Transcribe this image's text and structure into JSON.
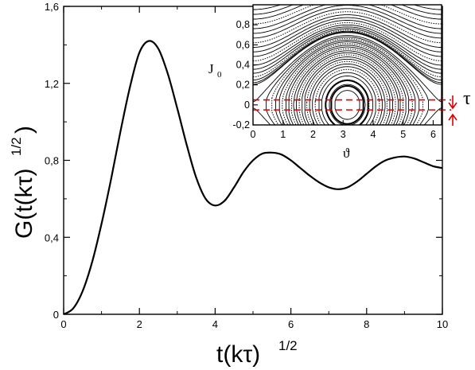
{
  "chart_data": [
    {
      "type": "line",
      "xlabel": {
        "base": "t(kτ)",
        "sup": "1/2"
      },
      "ylabel": {
        "base": "G(t(kτ)",
        "sup": "1/2",
        "close": ")"
      },
      "xlim": [
        0,
        10
      ],
      "ylim": [
        0,
        1.6
      ],
      "x_ticks": [
        "0",
        "2",
        "4",
        "6",
        "8",
        "10"
      ],
      "y_ticks": [
        "0",
        "0,4",
        "0,8",
        "1,2",
        "1,6"
      ],
      "x_tick_values": [
        0,
        2,
        4,
        6,
        8,
        10
      ],
      "y_tick_values": [
        0,
        0.4,
        0.8,
        1.2,
        1.6
      ],
      "grid": false,
      "series": [
        {
          "color": "#000000",
          "x": [
            0,
            0.25,
            0.5,
            0.75,
            1.0,
            1.25,
            1.5,
            1.75,
            2.0,
            2.25,
            2.5,
            2.75,
            3.0,
            3.25,
            3.5,
            3.75,
            4.0,
            4.25,
            4.5,
            4.75,
            5.0,
            5.25,
            5.5,
            5.75,
            6.0,
            6.25,
            6.5,
            6.75,
            7.0,
            7.25,
            7.5,
            7.75,
            8.0,
            8.25,
            8.5,
            8.75,
            9.0,
            9.25,
            9.5,
            9.75,
            10.0
          ],
          "y": [
            0.0,
            0.03,
            0.12,
            0.27,
            0.47,
            0.7,
            0.95,
            1.18,
            1.36,
            1.42,
            1.38,
            1.25,
            1.07,
            0.88,
            0.71,
            0.6,
            0.565,
            0.59,
            0.66,
            0.74,
            0.8,
            0.835,
            0.84,
            0.83,
            0.8,
            0.76,
            0.72,
            0.685,
            0.66,
            0.65,
            0.66,
            0.69,
            0.73,
            0.77,
            0.8,
            0.815,
            0.82,
            0.81,
            0.79,
            0.77,
            0.76
          ]
        }
      ]
    },
    {
      "type": "scatter",
      "title": "",
      "xlabel": "ϑ",
      "ylabel": {
        "base": "J",
        "sub": "0"
      },
      "xlim": [
        0,
        6.28
      ],
      "ylim": [
        -0.2,
        1.0
      ],
      "x_ticks": [
        "0",
        "1",
        "2",
        "3",
        "4",
        "5",
        "6"
      ],
      "y_ticks": [
        "-0,2",
        "0",
        "0,2",
        "0,4",
        "0,6",
        "0,8"
      ],
      "x_tick_values": [
        0,
        1,
        2,
        3,
        4,
        5,
        6
      ],
      "y_tick_values": [
        -0.2,
        0,
        0.2,
        0.4,
        0.6,
        0.8
      ],
      "description_marks": {
        "island_center_theta": 3.14,
        "island_center_J": 0.0,
        "band_lines_J": [
          0.05,
          -0.05
        ],
        "band_color": "#e00000"
      },
      "annotation": "τ"
    }
  ]
}
